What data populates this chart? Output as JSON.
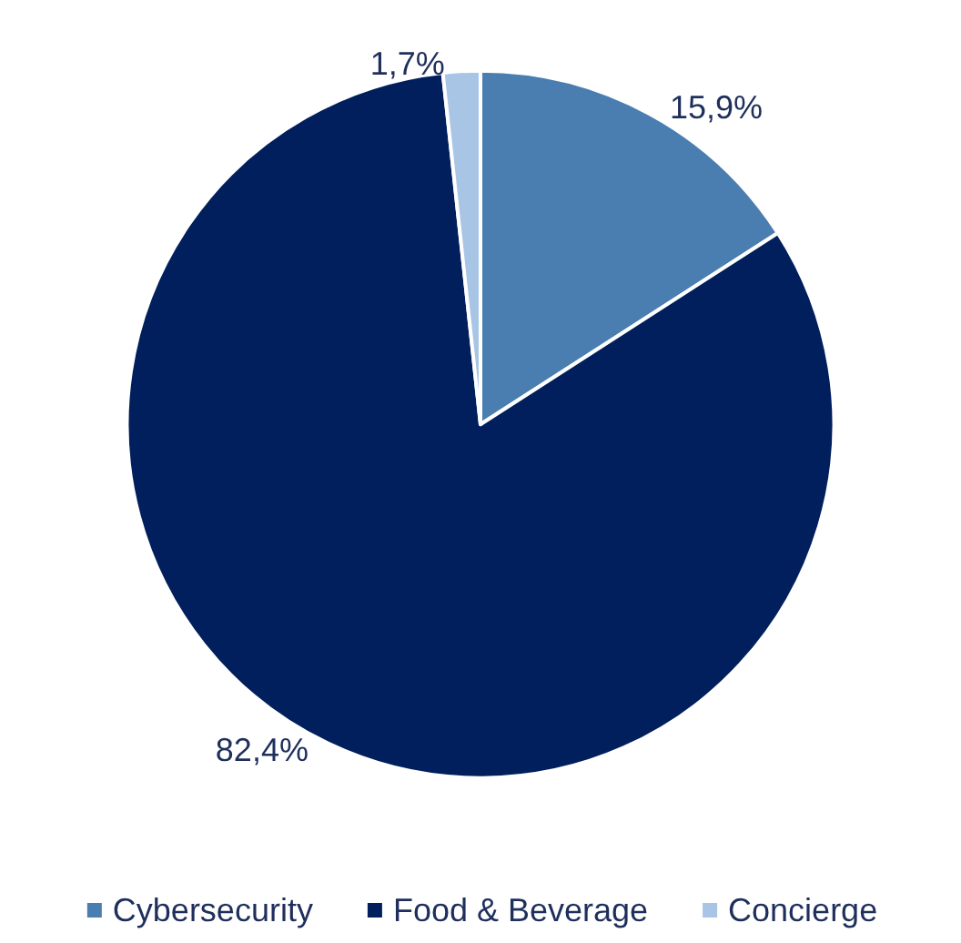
{
  "chart_data": {
    "type": "pie",
    "categories": [
      "Cybersecurity",
      "Food & Beverage",
      "Concierge"
    ],
    "values": [
      15.9,
      82.4,
      1.7
    ],
    "colors": [
      "#4a7eb0",
      "#001f5c",
      "#a9c5e6"
    ],
    "value_labels": [
      "15,9%",
      "82,4%",
      "1,7%"
    ],
    "legend": "bottom"
  }
}
